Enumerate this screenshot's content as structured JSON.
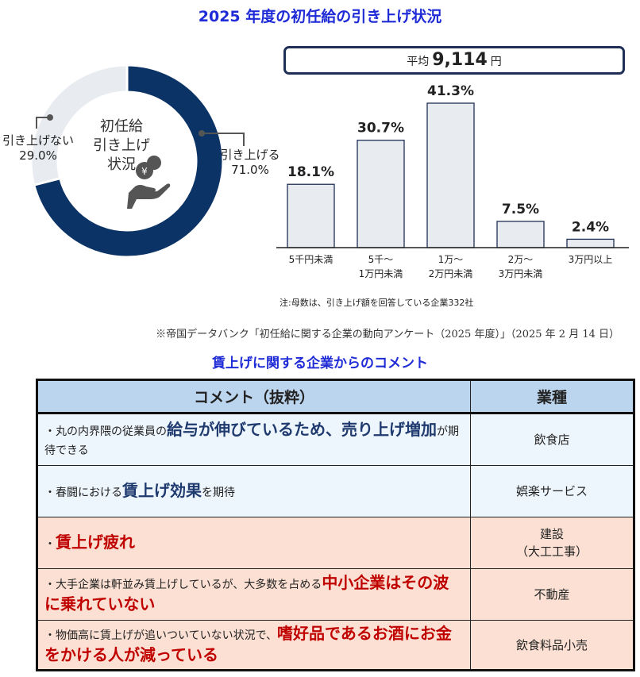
{
  "title": "2025 年度の初任給の引き上げ状況",
  "chart_data": [
    {
      "type": "pie",
      "title": "初任給 引き上げ 状況",
      "center_label": [
        "初任給",
        "引き上げ",
        "状況"
      ],
      "slices": [
        {
          "label": "引き上げる",
          "value": 71.0,
          "value_label": "71.0%",
          "color": "#0b3366"
        },
        {
          "label": "引き上げない",
          "value": 29.0,
          "value_label": "29.0%",
          "color": "#e8ebef"
        }
      ]
    },
    {
      "type": "bar",
      "title": "",
      "average": {
        "prefix": "平均",
        "value": "9,114",
        "unit": "円"
      },
      "categories": [
        [
          "5千円未満"
        ],
        [
          "5千～",
          "1万円未満"
        ],
        [
          "1万～",
          "2万円未満"
        ],
        [
          "2万～",
          "3万円未満"
        ],
        [
          "3万円以上"
        ]
      ],
      "values": [
        18.1,
        30.7,
        41.3,
        7.5,
        2.4
      ],
      "value_labels": [
        "18.1%",
        "30.7%",
        "41.3%",
        "7.5%",
        "2.4%"
      ],
      "ylim": [
        0,
        45
      ],
      "bar_color": "#e8ebef",
      "bar_edge": "#1f2f55"
    }
  ],
  "note": "注:母数は、引き上げ額を回答している企業332社",
  "source": "※帝国データバンク「初任給に関する企業の動向アンケート（2025 年度）」（2025 年 2 月 14 日）",
  "subtitle": "賃上げに関する企業からのコメント",
  "table": {
    "headers": [
      "コメント（抜粋）",
      "業種"
    ],
    "rows": [
      {
        "tone": "b",
        "segments": [
          {
            "t": "・丸の内界隈の従業員の",
            "e": 0
          },
          {
            "t": "給与が伸びているため、売り上げ増加",
            "e": 1
          },
          {
            "t": "が期待できる",
            "e": 0
          }
        ],
        "industry": "飲食店"
      },
      {
        "tone": "b",
        "segments": [
          {
            "t": "・春闘における",
            "e": 0
          },
          {
            "t": "賃上げ効果",
            "e": 1
          },
          {
            "t": "を期待",
            "e": 0
          }
        ],
        "industry": "娯楽サービス"
      },
      {
        "tone": "r",
        "segments": [
          {
            "t": "・",
            "e": 0
          },
          {
            "t": "賃上げ疲れ",
            "e": 1
          }
        ],
        "industry": "建設\n（大工工事）"
      },
      {
        "tone": "r",
        "segments": [
          {
            "t": "・大手企業は軒並み賃上げしているが、大多数を占める",
            "e": 0
          },
          {
            "t": "中小企業はその波に乗れていない",
            "e": 1
          }
        ],
        "industry": "不動産"
      },
      {
        "tone": "r",
        "segments": [
          {
            "t": "・物価高に賃上げが追いついていない状況で、",
            "e": 0
          },
          {
            "t": "嗜好品であるお酒にお金をかける人が減っている",
            "e": 1
          }
        ],
        "industry": "飲食料品小売"
      }
    ]
  }
}
